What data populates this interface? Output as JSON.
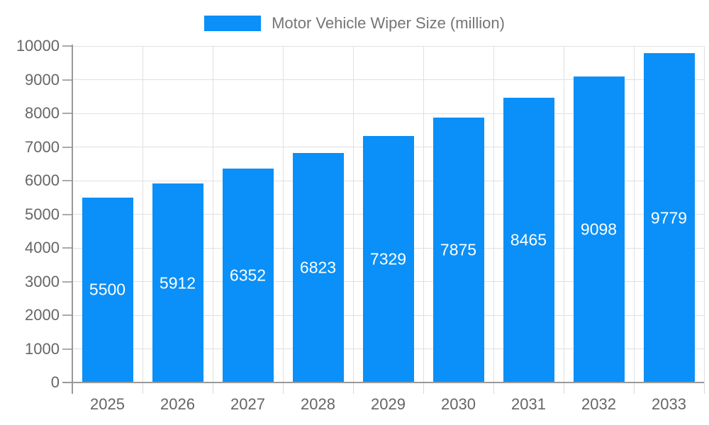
{
  "legend": {
    "title": "Motor Vehicle Wiper Size (million)"
  },
  "chart_data": {
    "type": "bar",
    "title": "Motor Vehicle Wiper Size (million)",
    "categories": [
      "2025",
      "2026",
      "2027",
      "2028",
      "2029",
      "2030",
      "2031",
      "2032",
      "2033"
    ],
    "values": [
      5500,
      5912,
      6352,
      6823,
      7329,
      7875,
      8465,
      9098,
      9779
    ],
    "xlabel": "",
    "ylabel": "",
    "ylim": [
      0,
      10000
    ],
    "ytick_step": 1000,
    "grid": true,
    "legend_position": "top-center",
    "colors": {
      "bar": "#0a90f8",
      "value_label": "#ffffff",
      "axis_label": "#666666",
      "legend_text": "#757575",
      "grid_line": "#e0e0e0",
      "axis_line": "#999999",
      "y_tick": "#aaaaaa",
      "x_tick": "#d9d9d9",
      "background": "#ffffff"
    }
  }
}
